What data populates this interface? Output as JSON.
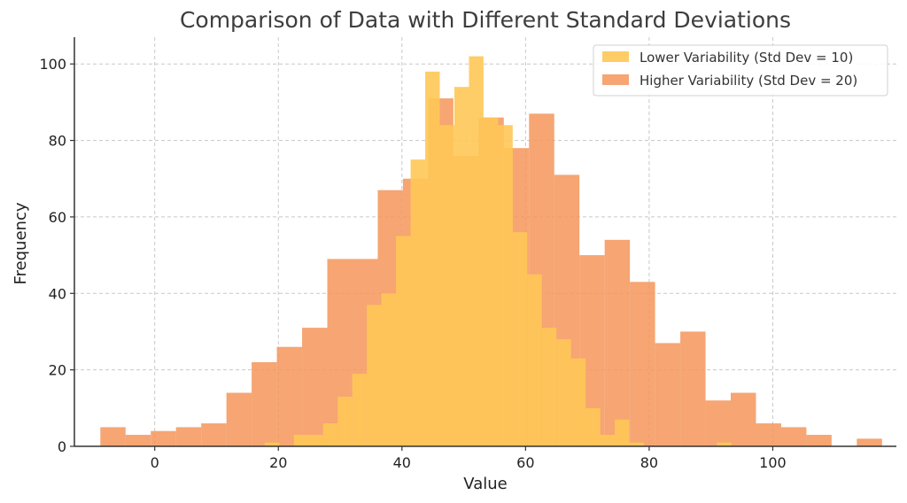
{
  "chart_data": {
    "type": "histogram",
    "title": "Comparison of Data with Different Standard Deviations",
    "xlabel": "Value",
    "ylabel": "Frequency",
    "xlim": [
      -13,
      120
    ],
    "ylim": [
      0,
      107
    ],
    "xticks": [
      0,
      20,
      40,
      60,
      80,
      100
    ],
    "yticks": [
      0,
      20,
      40,
      60,
      80,
      100
    ],
    "grid": true,
    "legend_position": "top-right",
    "series": [
      {
        "name": "Higher Variability (Std Dev = 20)",
        "color": "#f4955b",
        "opacity": 0.85,
        "bin_start": -8.8,
        "bin_width": 4.08,
        "counts": [
          5,
          3,
          4,
          5,
          6,
          14,
          22,
          26,
          31,
          49,
          49,
          67,
          70,
          91,
          76,
          86,
          78,
          87,
          71,
          50,
          54,
          43,
          27,
          30,
          12,
          14,
          6,
          5,
          3,
          0,
          2
        ]
      },
      {
        "name": "Lower Variability (Std Dev = 10)",
        "color": "#ffc857",
        "opacity": 0.9,
        "bin_start": 17.8,
        "bin_width": 2.36,
        "counts": [
          1,
          0,
          3,
          3,
          6,
          13,
          19,
          37,
          40,
          55,
          75,
          98,
          84,
          94,
          102,
          86,
          84,
          56,
          45,
          31,
          28,
          23,
          10,
          3,
          7,
          1,
          0,
          0,
          0,
          0,
          0,
          1
        ]
      }
    ]
  }
}
